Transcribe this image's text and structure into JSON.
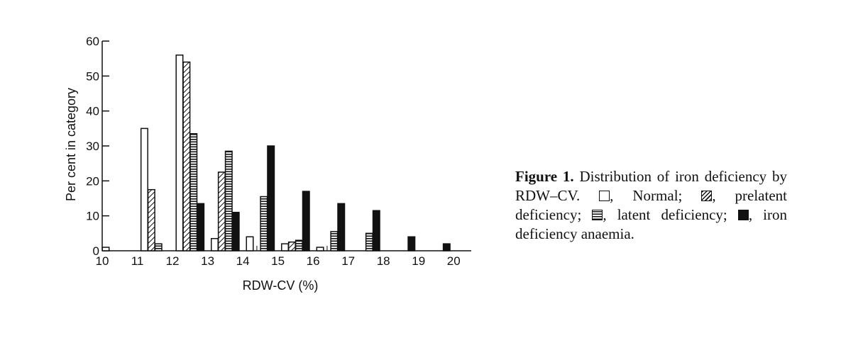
{
  "chart_data": {
    "type": "bar",
    "xlabel": "RDW-CV (%)",
    "ylabel": "Per cent in category",
    "ylim": [
      0,
      60
    ],
    "yticks": [
      0,
      10,
      20,
      30,
      40,
      50,
      60
    ],
    "xlim": [
      10,
      20.5
    ],
    "xticks": [
      10,
      11,
      12,
      13,
      14,
      15,
      16,
      17,
      18,
      19,
      20
    ],
    "series": [
      {
        "name": "Normal",
        "pattern": "open",
        "x": [
          10.1,
          11.2,
          12.2,
          13.2,
          14.2,
          15.2,
          16.2
        ],
        "values": [
          1,
          35,
          56,
          3.5,
          4,
          2,
          1
        ]
      },
      {
        "name": "prelatent deficiency",
        "pattern": "hatched",
        "x": [
          11.4,
          12.4,
          13.4,
          14.4,
          15.4,
          16.4
        ],
        "values": [
          17.5,
          54,
          22.5,
          0,
          2.5,
          0
        ]
      },
      {
        "name": "latent deficiency",
        "pattern": "horizontal-lines",
        "x": [
          11.6,
          12.6,
          13.6,
          14.6,
          15.6,
          16.6,
          17.6
        ],
        "values": [
          2,
          33.5,
          28.5,
          15.5,
          3,
          5.5,
          5
        ]
      },
      {
        "name": "iron deficiency anaemia",
        "pattern": "solid",
        "x": [
          12.8,
          13.8,
          14.8,
          15.8,
          16.8,
          17.8,
          18.8,
          19.8
        ],
        "values": [
          13.5,
          11,
          30,
          17,
          13.5,
          11.5,
          4,
          2
        ]
      }
    ],
    "grid": false,
    "legend": "in caption"
  },
  "caption": {
    "label": "Figure 1.",
    "text1": " Distribution of iron deficiency by RDW–CV. ",
    "normal": ", Normal; ",
    "prelatent": ", prelatent deficiency; ",
    "latent": ", latent deficiency; ",
    "anaemia": ", iron deficiency anaemia."
  }
}
